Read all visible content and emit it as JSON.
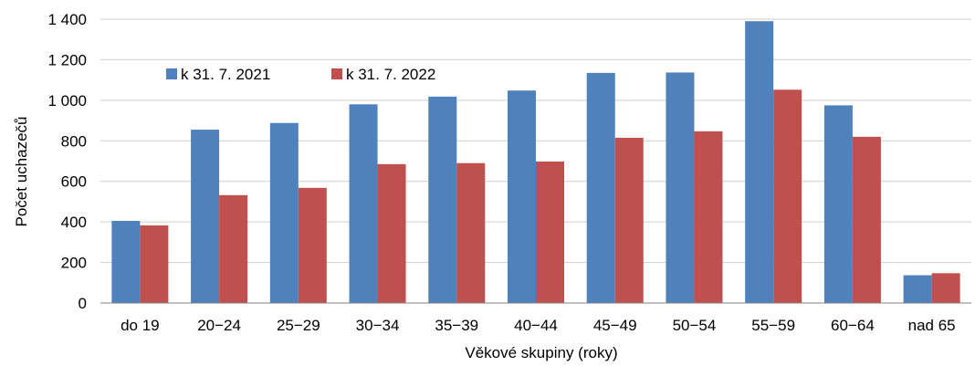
{
  "chart_data": {
    "type": "bar",
    "title": "",
    "xlabel": "Věkové skupiny (roky)",
    "ylabel": "Počet uchazečů",
    "ylim": [
      0,
      1400
    ],
    "yticks": [
      "0",
      "200",
      "400",
      "600",
      "800",
      "1 000",
      "1 200",
      "1 400"
    ],
    "grid": true,
    "legend_position": "top-left",
    "categories": [
      "do 19",
      "20−24",
      "25−29",
      "30−34",
      "35−39",
      "40−44",
      "45−49",
      "50−54",
      "55−59",
      "60−64",
      "nad 65"
    ],
    "series": [
      {
        "name": "k 31. 7. 2021",
        "color": "#4f81bd",
        "values": [
          405,
          855,
          888,
          980,
          1018,
          1048,
          1135,
          1137,
          1390,
          975,
          137
        ]
      },
      {
        "name": "k 31. 7. 2022",
        "color": "#c0504d",
        "values": [
          383,
          532,
          568,
          685,
          690,
          698,
          815,
          847,
          1052,
          820,
          147
        ]
      }
    ]
  }
}
